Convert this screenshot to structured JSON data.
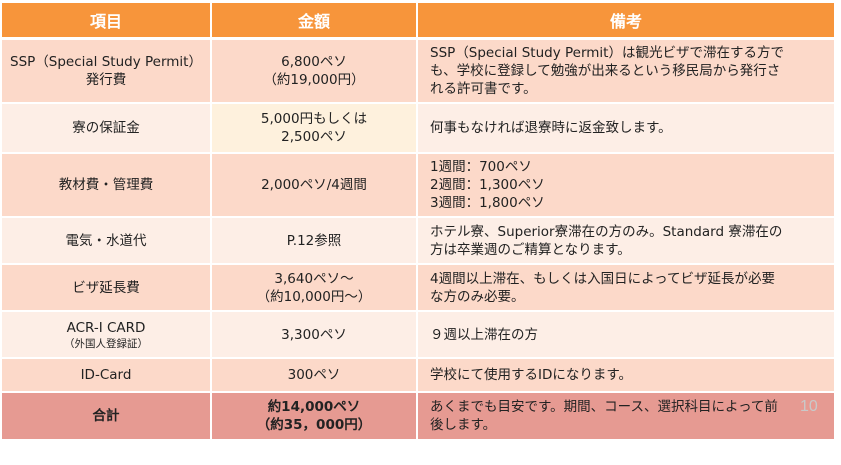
{
  "headers": {
    "item": "項目",
    "amount": "金額",
    "note": "備考"
  },
  "rows": [
    {
      "item": [
        "SSP（Special Study Permit）",
        "発行費"
      ],
      "amount": [
        "6,800ペソ",
        "（約19,000円）"
      ],
      "note": [
        "SSP（Special Study Permit）は観光ビザで滞在する方で",
        "も、学校に登録して勉強が出来るという移民局から発行さ",
        "れる許可書です。"
      ]
    },
    {
      "item": [
        "寮の保証金"
      ],
      "amount": [
        "5,000円もしくは",
        "2,500ペソ"
      ],
      "note": [
        "何事もなければ退寮時に返金致します。"
      ]
    },
    {
      "item": [
        "教材費・管理費"
      ],
      "amount": [
        "2,000ペソ/4週間"
      ],
      "note": [
        "1週間：700ペソ",
        "2週間：1,300ペソ",
        "3週間：1,800ペソ"
      ]
    },
    {
      "item": [
        "電気・水道代"
      ],
      "amount": [
        "P.12参照"
      ],
      "note": [
        "ホテル寮、Superior寮滞在の方のみ。Standard 寮滞在の",
        "方は卒業週のご精算となります。"
      ]
    },
    {
      "item": [
        "ビザ延長費"
      ],
      "amount": [
        "3,640ペソ～",
        "（約10,000円～）"
      ],
      "note": [
        "4週間以上滞在、もしくは入国日によってビザ延長が必要",
        "な方のみ必要。"
      ]
    },
    {
      "item": [
        "ACR-I CARD"
      ],
      "item_sub": "（外国人登録証）",
      "amount": [
        "3,300ペソ"
      ],
      "note": [
        "９週以上滞在の方"
      ]
    },
    {
      "item": [
        "ID-Card"
      ],
      "amount": [
        "300ペソ"
      ],
      "note": [
        "学校にて使用するIDになります。"
      ]
    }
  ],
  "total": {
    "item": "合計",
    "amount": [
      "約14,000ペソ",
      "（約35，000円）"
    ],
    "note": [
      "あくまでも目安です。期間、コース、選択科目によって前",
      "後します。"
    ]
  },
  "page_number": "10",
  "colors": {
    "header": "#f7953b",
    "row_dark": "#fcd9c9",
    "row_light": "#fdeee6",
    "total": "#e69a92"
  }
}
